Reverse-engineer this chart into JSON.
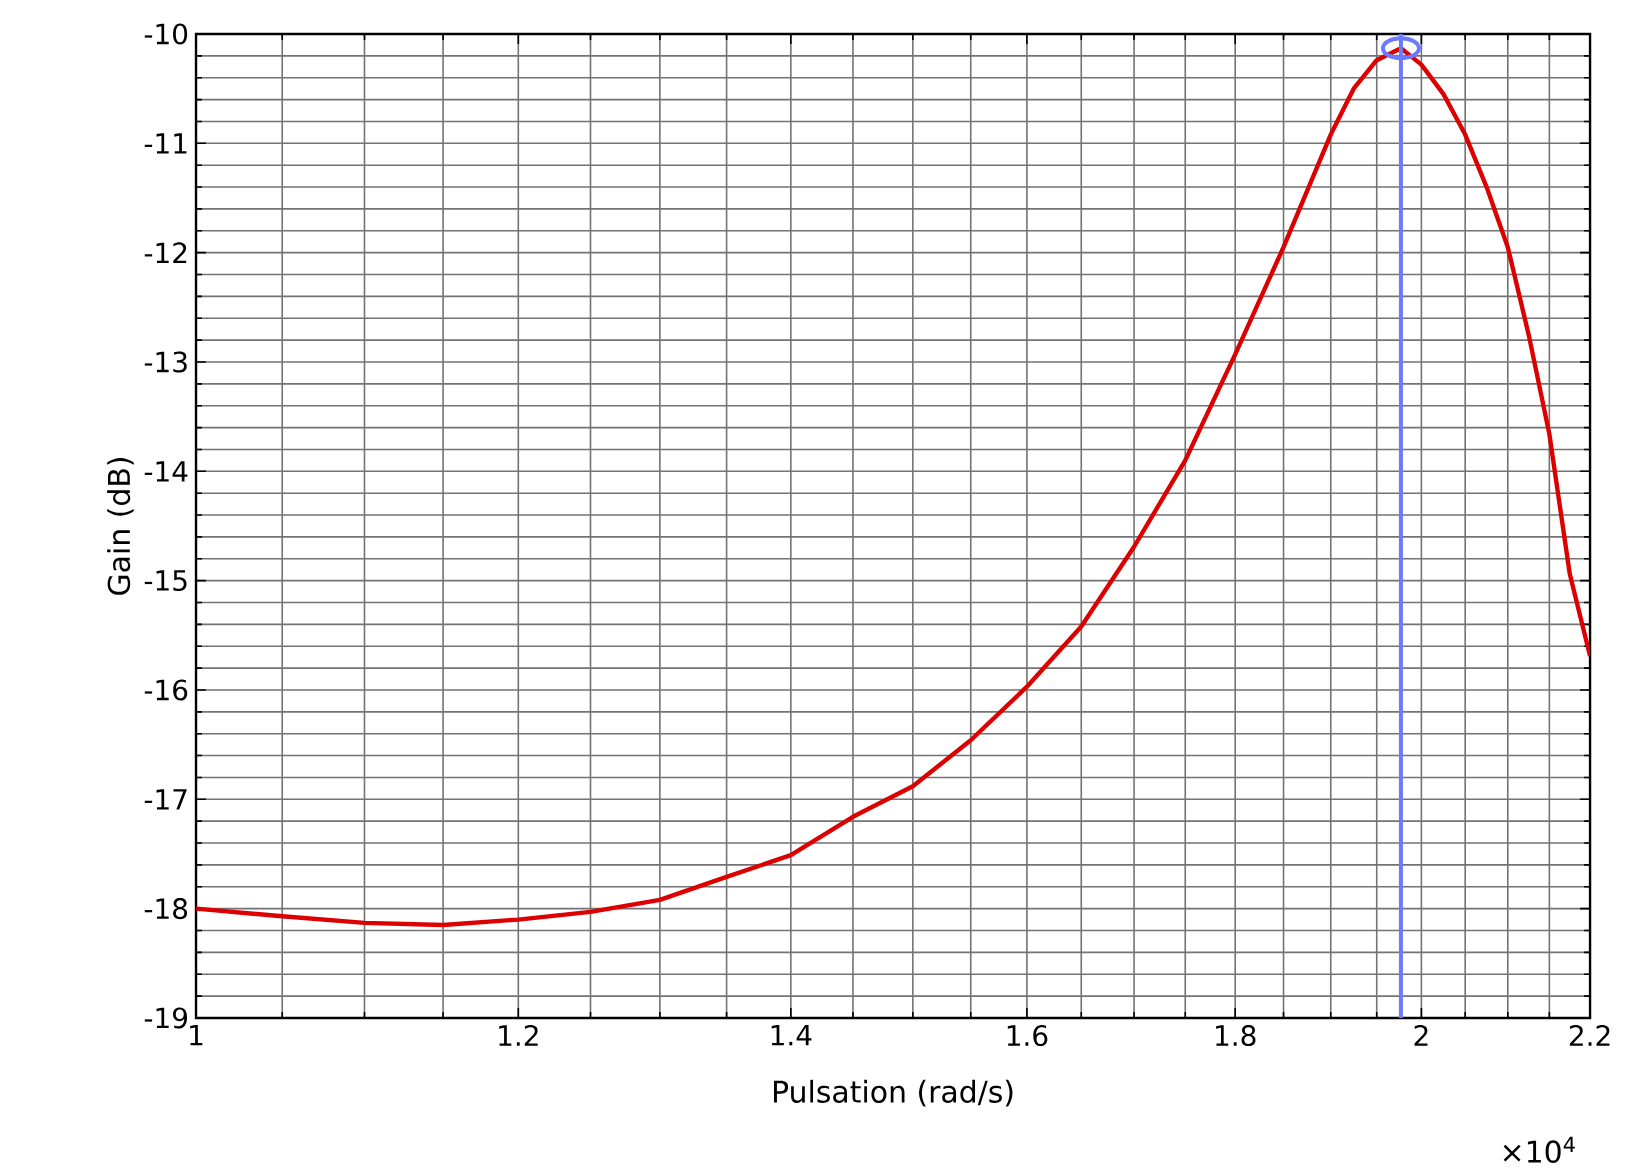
{
  "chart_data": {
    "type": "line",
    "xlabel": "Pulsation (rad/s)",
    "ylabel": "Gain (dB)",
    "log": "x",
    "xlim": [
      1,
      2.2
    ],
    "ylim": [
      -19,
      -10
    ],
    "xticks": [
      1,
      1.2,
      1.4,
      1.6,
      1.8,
      2,
      2.2
    ],
    "yticks": [
      -19,
      -18,
      -17,
      -16,
      -15,
      -14,
      -13,
      -12,
      -11,
      -10
    ],
    "grid": true,
    "marker": "none",
    "line_style": "solid",
    "series": [
      {
        "color": "#dd0000",
        "x": [
          1,
          1.05,
          1.1,
          1.15,
          1.2,
          1.25,
          1.3,
          1.35,
          1.4,
          1.45,
          1.5,
          1.55,
          1.6,
          1.65,
          1.7,
          1.75,
          1.8,
          1.85,
          1.9,
          1.925,
          1.95,
          1.977,
          2.0,
          2.025,
          2.05,
          2.075,
          2.1,
          2.125,
          2.15,
          2.175,
          2.2
        ],
        "values": [
          -18.0,
          -18.07,
          -18.13,
          -18.15,
          -18.1,
          -18.03,
          -17.92,
          -17.71,
          -17.51,
          -17.16,
          -16.88,
          -16.46,
          -15.97,
          -15.42,
          -14.69,
          -13.9,
          -12.93,
          -11.95,
          -10.92,
          -10.5,
          -10.24,
          -10.13,
          -10.28,
          -10.55,
          -10.92,
          -11.4,
          -11.95,
          -12.75,
          -13.66,
          -14.94,
          -15.69
        ]
      },
      {
        "type": "scatter",
        "marker": "circle",
        "color": "#6b7bff",
        "x": [
          1.977
        ],
        "values": [
          -10.13
        ]
      }
    ],
    "ref_lines": [
      {
        "axis": "x",
        "value": 1.977,
        "color": "#6b7bff",
        "line_style": "solid"
      }
    ],
    "annotations": [
      "×10$^{4}$"
    ]
  }
}
